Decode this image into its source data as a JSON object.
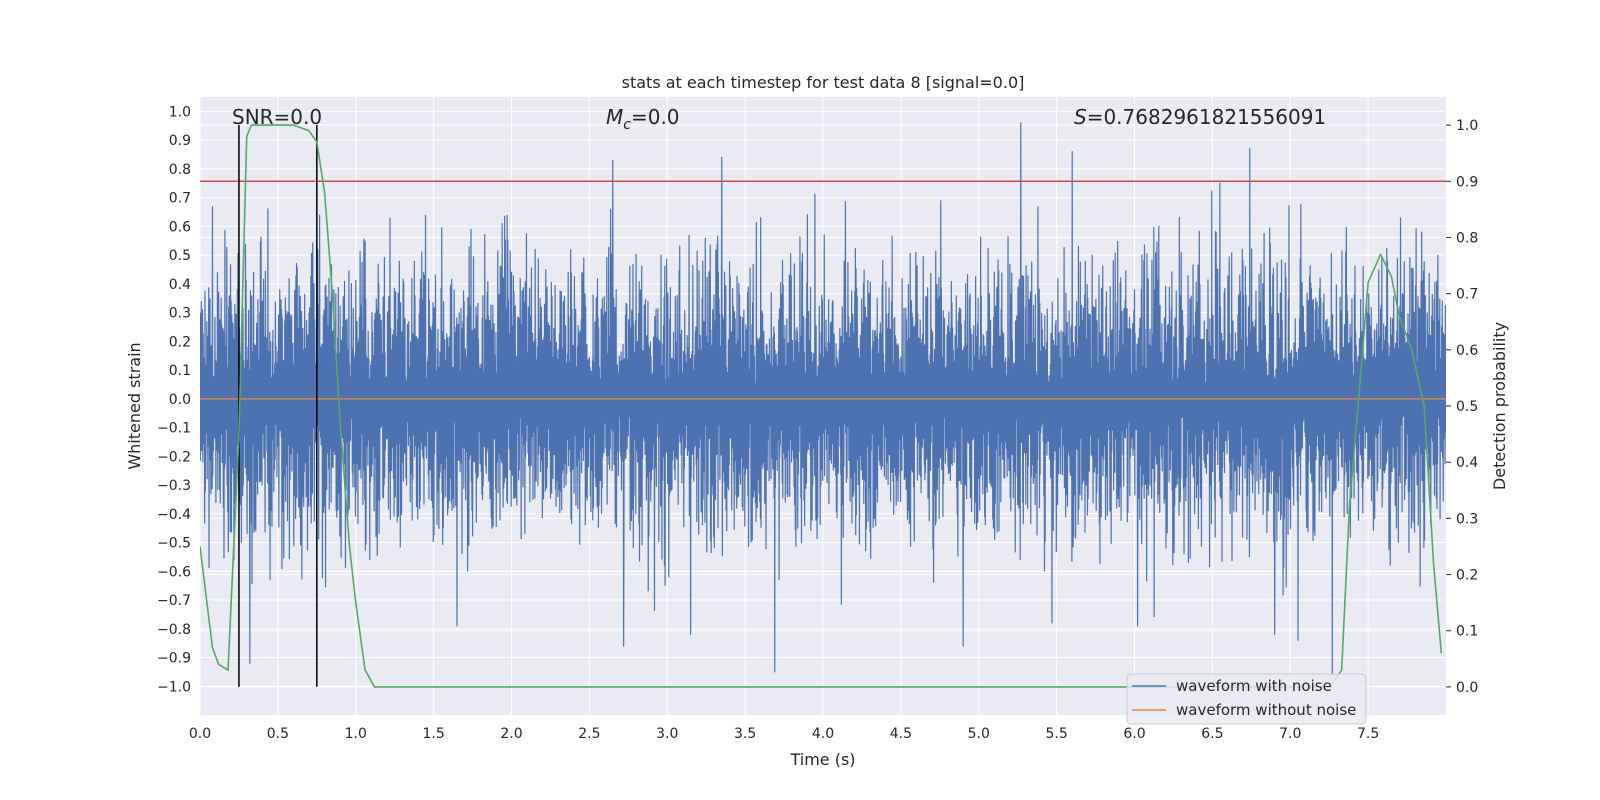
{
  "chart_data": {
    "type": "line",
    "title": "stats at each timestep for test data 8 [signal=0.0]",
    "xlabel": "Time (s)",
    "ylabel": "Whitened strain",
    "y2label": "Detection probability",
    "xlim": [
      0.0,
      8.0
    ],
    "ylim": [
      -1.1,
      1.05
    ],
    "y2lim": [
      -0.05,
      1.05
    ],
    "xticks": [
      "0.0",
      "0.5",
      "1.0",
      "1.5",
      "2.0",
      "2.5",
      "3.0",
      "3.5",
      "4.0",
      "4.5",
      "5.0",
      "5.5",
      "6.0",
      "6.5",
      "7.0",
      "7.5"
    ],
    "yticks": [
      "1.0",
      "0.9",
      "0.8",
      "0.7",
      "0.6",
      "0.5",
      "0.4",
      "0.3",
      "0.2",
      "0.1",
      "0.0",
      "−0.1",
      "−0.2",
      "−0.3",
      "−0.4",
      "−0.5",
      "−0.6",
      "−0.7",
      "−0.8",
      "−0.9",
      "−1.0"
    ],
    "y2ticks": [
      "1.0",
      "0.9",
      "0.8",
      "0.7",
      "0.6",
      "0.5",
      "0.4",
      "0.3",
      "0.2",
      "0.1",
      "0.0"
    ],
    "annotations": {
      "snr": "SNR=0.0",
      "mc_symbol": "M",
      "mc_sub": "c",
      "mc_value": "=0.0",
      "s_symbol": "S",
      "s_value": "=0.7682961821556091"
    },
    "threshold": {
      "value": 0.9,
      "color": "#c44e52"
    },
    "vlines": [
      0.25,
      0.75
    ],
    "noise": {
      "name": "waveform with noise",
      "color": "#4c72b0",
      "typical_amplitude": 0.45,
      "peak_amplitude": 0.96,
      "spikes": [
        {
          "t": 5.27,
          "v": 0.96
        },
        {
          "t": 6.74,
          "v": 0.87
        },
        {
          "t": 5.6,
          "v": 0.86
        },
        {
          "t": 3.35,
          "v": 0.84
        },
        {
          "t": 2.65,
          "v": 0.83
        },
        {
          "t": 3.69,
          "v": -0.95
        },
        {
          "t": 7.27,
          "v": -0.96
        },
        {
          "t": 1.65,
          "v": -0.79
        },
        {
          "t": 2.72,
          "v": -0.86
        },
        {
          "t": 3.15,
          "v": -0.82
        },
        {
          "t": 5.47,
          "v": -0.78
        },
        {
          "t": 6.02,
          "v": -0.79
        },
        {
          "t": 7.05,
          "v": -0.84
        },
        {
          "t": 0.32,
          "v": -0.92
        },
        {
          "t": 6.9,
          "v": -0.82
        },
        {
          "t": 4.9,
          "v": -0.86
        }
      ]
    },
    "clean": {
      "name": "waveform without noise",
      "color": "#dd8452",
      "value": 0.0
    },
    "probability": {
      "name": "detection probability",
      "color": "#55a868",
      "x": [
        0.0,
        0.08,
        0.12,
        0.18,
        0.25,
        0.3,
        0.33,
        0.4,
        0.5,
        0.6,
        0.7,
        0.75,
        0.8,
        0.85,
        0.9,
        0.96,
        1.0,
        1.06,
        1.12,
        1.2,
        6.0,
        7.0,
        7.25,
        7.33,
        7.38,
        7.45,
        7.5,
        7.58,
        7.65,
        7.7,
        7.78,
        7.86,
        7.92,
        7.97
      ],
      "y": [
        0.25,
        0.07,
        0.04,
        0.03,
        0.45,
        0.98,
        1.0,
        1.0,
        1.0,
        1.0,
        0.99,
        0.97,
        0.88,
        0.7,
        0.47,
        0.25,
        0.15,
        0.03,
        0.0,
        0.0,
        0.0,
        0.0,
        0.0,
        0.03,
        0.32,
        0.55,
        0.72,
        0.77,
        0.73,
        0.66,
        0.6,
        0.5,
        0.22,
        0.06
      ]
    },
    "legend": {
      "position": "lower-right",
      "entries": [
        "waveform with noise",
        "waveform without noise"
      ]
    }
  }
}
